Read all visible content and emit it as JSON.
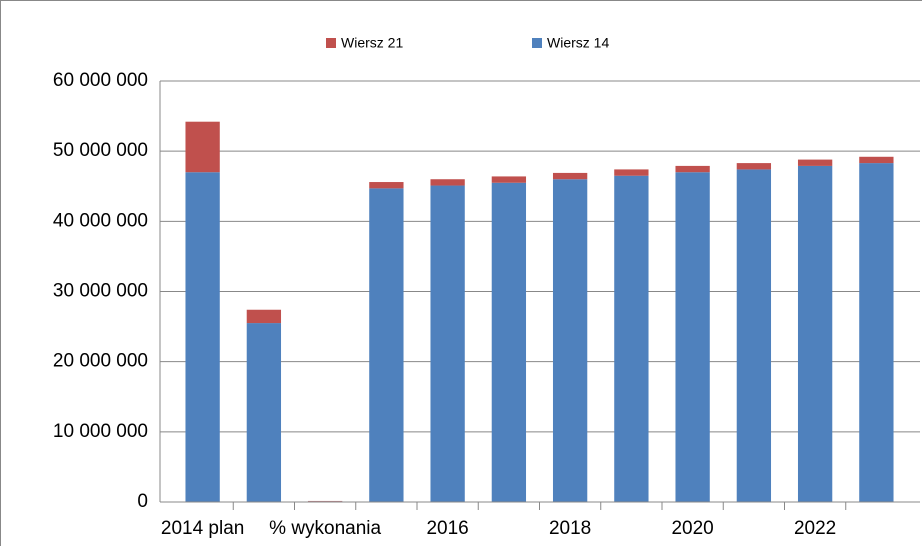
{
  "chart_data": {
    "type": "bar",
    "stacked": true,
    "categories": [
      "2014 plan",
      null,
      "% wykonania",
      null,
      "2016",
      null,
      "2018",
      null,
      "2020",
      null,
      "2022",
      null
    ],
    "series": [
      {
        "name": "Wiersz 14",
        "color": "#4f81bd",
        "values": [
          47000000,
          25500000,
          100000,
          44700000,
          45100000,
          45500000,
          46000000,
          46500000,
          47000000,
          47400000,
          47900000,
          48300000
        ]
      },
      {
        "name": "Wiersz 21",
        "color": "#c0504d",
        "values": [
          7200000,
          1900000,
          50000,
          900000,
          900000,
          900000,
          900000,
          900000,
          900000,
          900000,
          900000,
          900000
        ]
      }
    ],
    "ylim": [
      0,
      60000000
    ],
    "yticks": [
      0,
      {
        "value": 10000000,
        "label": "10 000 000"
      },
      {
        "value": 20000000,
        "label": "20 000 000"
      },
      {
        "value": 30000000,
        "label": "30 000 000"
      },
      {
        "value": 40000000,
        "label": "40 000 000"
      },
      {
        "value": 50000000,
        "label": "50 000 000"
      },
      {
        "value": 60000000,
        "label": "60 000 000"
      }
    ],
    "grid": true,
    "legend": "top"
  }
}
